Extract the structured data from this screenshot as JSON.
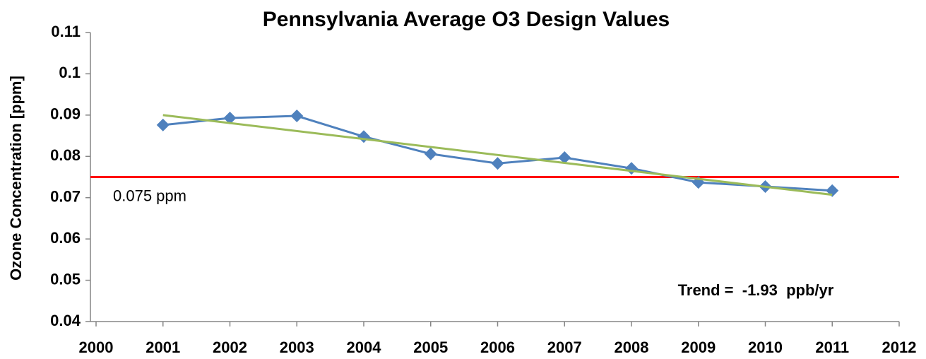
{
  "chart_data": {
    "type": "line",
    "title": "Pennsylvania Average O3 Design Values",
    "y_label": "Ozone Concentration [ppm]",
    "series": [
      {
        "color": "#4f81bd",
        "marker": "diamond",
        "x": [
          2001,
          2002,
          2003,
          2004,
          2005,
          2006,
          2007,
          2008,
          2009,
          2010,
          2011
        ],
        "values": [
          0.0876,
          0.0893,
          0.0898,
          0.0848,
          0.0806,
          0.0783,
          0.0797,
          0.0771,
          0.0737,
          0.0727,
          0.0717
        ]
      },
      {
        "color": "#9bbb59",
        "x": [
          2001,
          2011
        ],
        "values": [
          0.09,
          0.0707
        ]
      }
    ],
    "reference_lines": [
      {
        "value": 0.075,
        "label": "0.075 ppm",
        "color": "#ff0000"
      }
    ],
    "annotations": [
      {
        "text": "Trend =  -1.93  ppb/yr"
      }
    ],
    "xlim": [
      2000,
      2012
    ],
    "xticks": [
      2000,
      2001,
      2002,
      2003,
      2004,
      2005,
      2006,
      2007,
      2008,
      2009,
      2010,
      2011,
      2012
    ],
    "ylim": [
      0.04,
      0.11
    ],
    "yticks": [
      0.04,
      0.05,
      0.06,
      0.07,
      0.08,
      0.09,
      0.1,
      0.11
    ],
    "grid": false
  }
}
